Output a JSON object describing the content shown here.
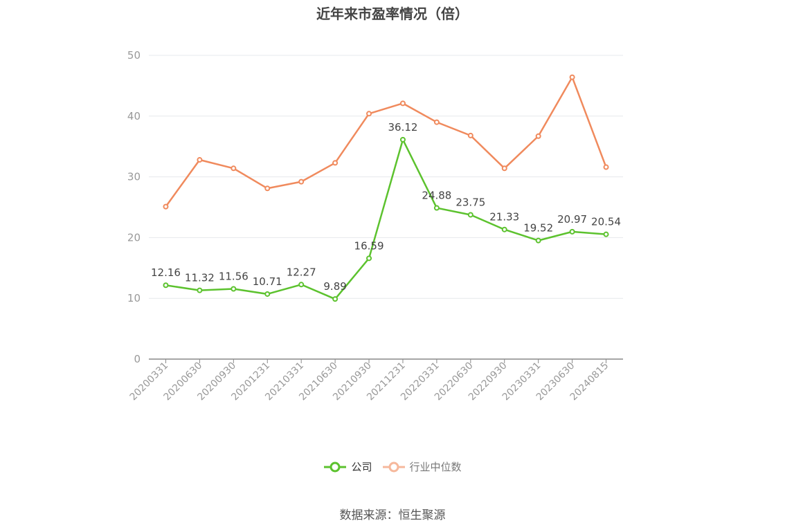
{
  "title": "近年来市盈率情况（倍）",
  "source": "数据来源：恒生聚源",
  "colors": {
    "company": "#5cc22e",
    "industry": "#f08a5d",
    "axis": "#888888",
    "grid": "#e6e8ec"
  },
  "chart_data": {
    "type": "line",
    "title": "近年来市盈率情况（倍）",
    "xlabel": "",
    "ylabel": "",
    "ylim": [
      0,
      50
    ],
    "yticks": [
      0,
      10,
      20,
      30,
      40,
      50
    ],
    "grid": true,
    "legend": "bottom",
    "categories": [
      "20200331",
      "20200630",
      "20200930",
      "20201231",
      "20210331",
      "20210630",
      "20210930",
      "20211231",
      "20220331",
      "20220630",
      "20220930",
      "20230331",
      "20230630",
      "20240815"
    ],
    "series": [
      {
        "name": "公司",
        "key": "company",
        "values": [
          12.16,
          11.32,
          11.56,
          10.71,
          12.27,
          9.89,
          16.59,
          36.12,
          24.88,
          23.75,
          21.33,
          19.52,
          20.97,
          20.54
        ],
        "labels": [
          "12.16",
          "11.32",
          "11.56",
          "10.71",
          "12.27",
          "9.89",
          "16.59",
          "36.12",
          "24.88",
          "23.75",
          "21.33",
          "19.52",
          "20.97",
          "20.54"
        ]
      },
      {
        "name": "行业中位数",
        "key": "industry",
        "values": [
          25.1,
          32.8,
          31.4,
          28.1,
          29.2,
          32.3,
          40.4,
          42.1,
          39.0,
          36.8,
          31.4,
          36.7,
          46.4,
          31.6
        ]
      }
    ]
  }
}
